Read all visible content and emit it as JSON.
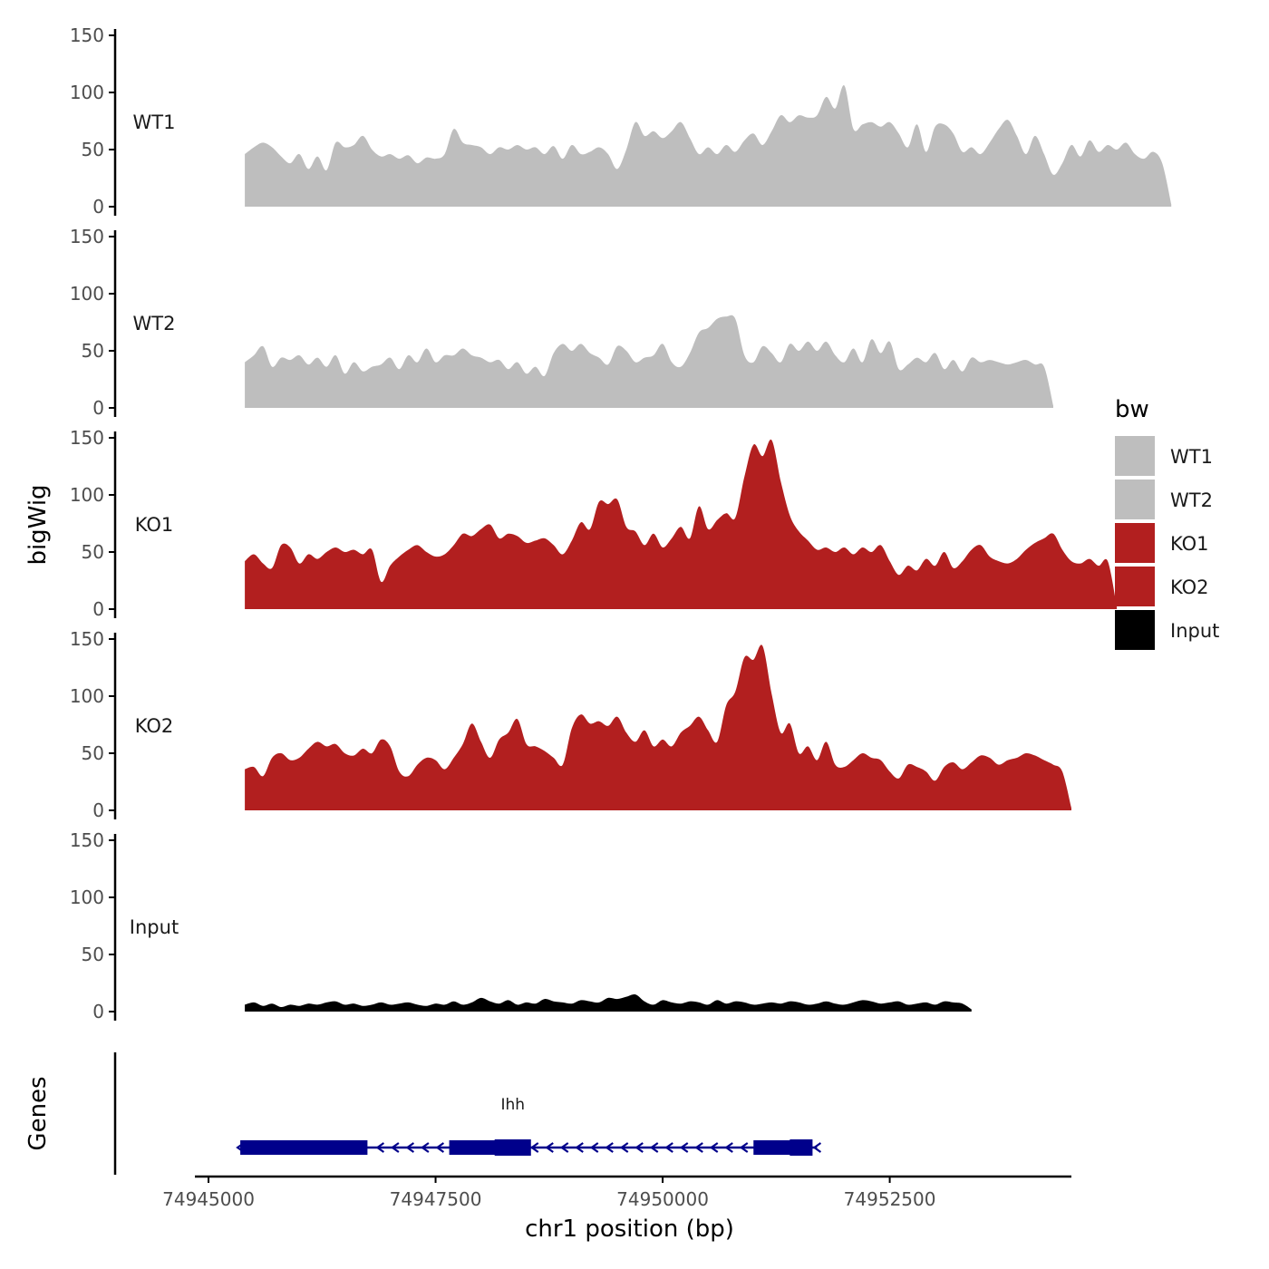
{
  "chart_data": {
    "type": "area",
    "ylabel": "bigWig",
    "xlabel": "chr1 position (bp)",
    "ylim": [
      0,
      150
    ],
    "yticks": [
      0,
      50,
      100,
      150
    ],
    "xlim": [
      74944850,
      74954500
    ],
    "xticks": [
      74945000,
      74947500,
      74950000,
      74952500
    ],
    "xtick_labels": [
      "74945000",
      "74947500",
      "74950000",
      "74952500"
    ],
    "x_start": 74945400,
    "x_step": 100,
    "series": [
      {
        "name": "WT1",
        "color": "#bebebe",
        "values": [
          46,
          52,
          56,
          52,
          44,
          38,
          46,
          33,
          44,
          32,
          56,
          52,
          54,
          62,
          50,
          44,
          46,
          42,
          45,
          38,
          43,
          42,
          46,
          68,
          56,
          54,
          52,
          46,
          52,
          50,
          54,
          50,
          52,
          46,
          53,
          42,
          54,
          46,
          48,
          52,
          46,
          33,
          50,
          74,
          62,
          66,
          60,
          66,
          74,
          60,
          46,
          52,
          46,
          54,
          48,
          58,
          64,
          54,
          66,
          80,
          74,
          80,
          78,
          80,
          96,
          86,
          106,
          68,
          72,
          74,
          70,
          74,
          64,
          52,
          72,
          48,
          70,
          72,
          64,
          48,
          52,
          46,
          56,
          68,
          76,
          62,
          46,
          62,
          46,
          28,
          38,
          54,
          44,
          58,
          48,
          54,
          50,
          56,
          46,
          42,
          48,
          38,
          2
        ]
      },
      {
        "name": "WT2",
        "color": "#bebebe",
        "values": [
          40,
          46,
          54,
          36,
          44,
          42,
          46,
          38,
          44,
          36,
          46,
          30,
          40,
          32,
          36,
          38,
          44,
          34,
          46,
          40,
          52,
          40,
          46,
          46,
          52,
          46,
          44,
          40,
          42,
          34,
          40,
          30,
          36,
          28,
          48,
          56,
          50,
          56,
          48,
          44,
          38,
          54,
          50,
          40,
          44,
          46,
          56,
          40,
          36,
          48,
          66,
          70,
          78,
          80,
          78,
          46,
          40,
          54,
          48,
          40,
          56,
          50,
          58,
          50,
          58,
          46,
          40,
          52,
          40,
          60,
          48,
          58,
          34,
          38,
          44,
          40,
          48,
          34,
          42,
          32,
          44,
          40,
          42,
          40,
          38,
          40,
          42,
          38,
          36,
          2
        ]
      },
      {
        "name": "KO1",
        "color": "#b21f1f",
        "values": [
          42,
          48,
          40,
          36,
          56,
          54,
          40,
          48,
          44,
          50,
          54,
          50,
          52,
          48,
          52,
          24,
          38,
          46,
          52,
          56,
          50,
          46,
          48,
          56,
          66,
          64,
          70,
          74,
          62,
          66,
          64,
          58,
          60,
          62,
          56,
          48,
          60,
          76,
          70,
          94,
          92,
          96,
          72,
          68,
          56,
          66,
          54,
          62,
          72,
          62,
          90,
          70,
          78,
          84,
          80,
          116,
          144,
          134,
          148,
          112,
          82,
          68,
          60,
          52,
          54,
          50,
          54,
          48,
          54,
          50,
          56,
          42,
          30,
          38,
          34,
          44,
          38,
          50,
          36,
          42,
          52,
          56,
          46,
          42,
          40,
          44,
          52,
          58,
          62,
          66,
          52,
          42,
          40,
          44,
          38,
          42,
          2
        ]
      },
      {
        "name": "KO2",
        "color": "#b21f1f",
        "values": [
          36,
          38,
          30,
          46,
          50,
          44,
          46,
          54,
          60,
          56,
          58,
          50,
          48,
          54,
          50,
          62,
          56,
          34,
          30,
          40,
          46,
          44,
          36,
          46,
          58,
          76,
          60,
          46,
          62,
          68,
          80,
          58,
          56,
          52,
          46,
          40,
          72,
          84,
          76,
          78,
          74,
          82,
          68,
          60,
          70,
          56,
          62,
          56,
          68,
          74,
          82,
          70,
          60,
          92,
          104,
          134,
          132,
          144,
          102,
          68,
          76,
          50,
          56,
          44,
          60,
          40,
          38,
          44,
          50,
          46,
          44,
          34,
          28,
          40,
          38,
          34,
          26,
          38,
          42,
          36,
          42,
          48,
          46,
          40,
          44,
          46,
          50,
          48,
          44,
          40,
          34,
          2
        ]
      },
      {
        "name": "Input",
        "color": "#000000",
        "values": [
          6,
          8,
          5,
          7,
          4,
          6,
          5,
          7,
          6,
          8,
          9,
          6,
          7,
          5,
          6,
          8,
          6,
          7,
          8,
          6,
          5,
          7,
          6,
          9,
          6,
          8,
          12,
          9,
          7,
          10,
          6,
          8,
          7,
          11,
          9,
          8,
          7,
          10,
          9,
          8,
          12,
          11,
          13,
          15,
          9,
          6,
          10,
          8,
          7,
          9,
          8,
          6,
          10,
          7,
          9,
          8,
          6,
          7,
          8,
          7,
          9,
          8,
          6,
          7,
          9,
          7,
          6,
          8,
          10,
          9,
          7,
          8,
          9,
          6,
          7,
          8,
          6,
          9,
          8,
          7,
          2
        ]
      }
    ],
    "genes": {
      "title": "Genes",
      "name": "Ihh",
      "name_x": 74948350,
      "color": "#00008b",
      "strand": "-",
      "span": [
        74945350,
        74951700
      ],
      "exons": [
        [
          74945350,
          74946750
        ],
        [
          74947650,
          74948450
        ],
        [
          74951000,
          74951600
        ]
      ],
      "cds": [
        [
          74948150,
          74948550
        ],
        [
          74951400,
          74951650
        ]
      ]
    },
    "legend": {
      "title": "bw",
      "position": "right",
      "entries": [
        {
          "label": "WT1",
          "color": "#bebebe"
        },
        {
          "label": "WT2",
          "color": "#bebebe"
        },
        {
          "label": "KO1",
          "color": "#b21f1f"
        },
        {
          "label": "KO2",
          "color": "#b21f1f"
        },
        {
          "label": "Input",
          "color": "#000000"
        }
      ]
    }
  }
}
